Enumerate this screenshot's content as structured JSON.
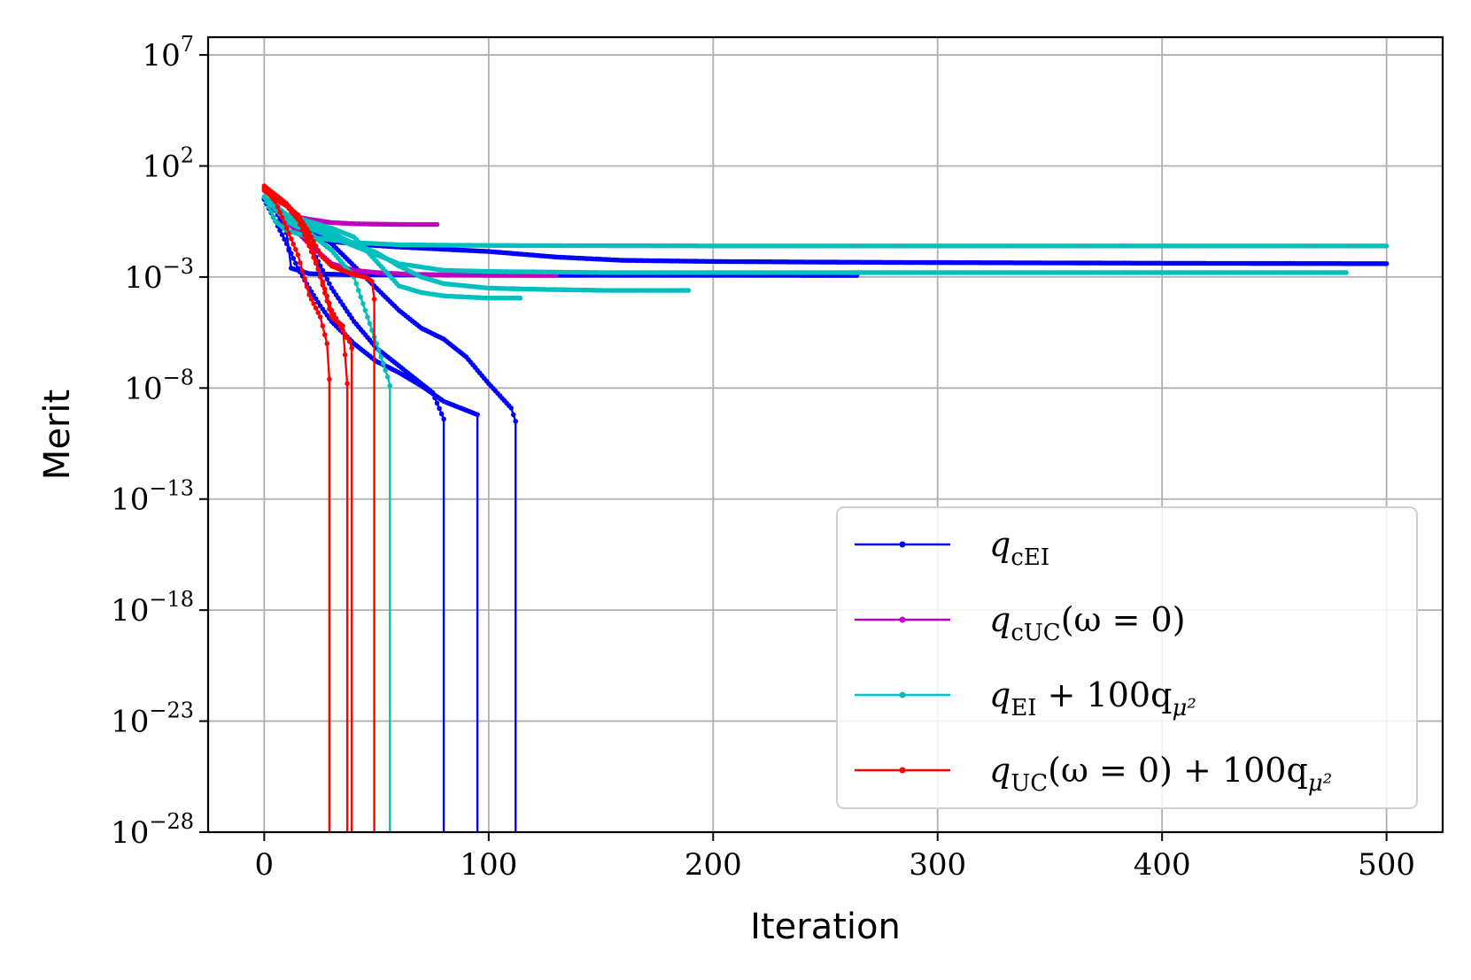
{
  "chart_data": {
    "type": "line",
    "title": "",
    "xlabel": "Iteration",
    "ylabel": "Merit",
    "x_ticks": [
      "0",
      "100",
      "200",
      "300",
      "400",
      "500"
    ],
    "y_ticks": [
      {
        "base": "10",
        "exp": "7"
      },
      {
        "base": "10",
        "exp": "2"
      },
      {
        "base": "10",
        "exp": "−3"
      },
      {
        "base": "10",
        "exp": "−8"
      },
      {
        "base": "10",
        "exp": "−13"
      },
      {
        "base": "10",
        "exp": "−18"
      },
      {
        "base": "10",
        "exp": "−23"
      },
      {
        "base": "10",
        "exp": "−28"
      }
    ],
    "xlim": [
      -25,
      525
    ],
    "ylim_log10": [
      -28,
      7.8
    ],
    "yscale": "log",
    "grid": true,
    "legend_position": "lower-right",
    "series": [
      {
        "name": "q_cEI",
        "color": "#0000ff",
        "legend": {
          "main": "q",
          "sub": "cEI",
          "rest": ""
        },
        "runs": [
          {
            "x": [
              0,
              5,
              10,
              15,
              20,
              30,
              45,
              60,
              80,
              100,
              130,
              160,
              200,
              250,
              300,
              400,
              500
            ],
            "log10y": [
              0.6,
              0.1,
              -0.3,
              -0.8,
              -1.2,
              -1.4,
              -1.55,
              -1.65,
              -1.75,
              -1.85,
              -2.1,
              -2.25,
              -2.3,
              -2.33,
              -2.35,
              -2.38,
              -2.4
            ]
          },
          {
            "x": [
              0,
              5,
              10,
              12,
              20,
              40,
              70,
              100,
              150,
              200,
              264
            ],
            "log10y": [
              0.5,
              0.0,
              -1.0,
              -2.6,
              -2.85,
              -2.9,
              -2.9,
              -2.92,
              -2.92,
              -2.92,
              -2.93
            ]
          },
          {
            "x": [
              0,
              5,
              10,
              15,
              20,
              25,
              30,
              40,
              50,
              60,
              70,
              80,
              90,
              95,
              95,
              95
            ],
            "log10y": [
              0.5,
              -0.5,
              -1.5,
              -2.6,
              -3.5,
              -4.3,
              -5.0,
              -6.0,
              -6.8,
              -7.3,
              -7.9,
              -8.6,
              -9.0,
              -9.2,
              -9.2,
              -28
            ]
          },
          {
            "x": [
              0,
              10,
              20,
              30,
              40,
              50,
              60,
              70,
              75,
              80,
              80
            ],
            "log10y": [
              0.5,
              -0.5,
              -1.5,
              -3.5,
              -5.0,
              -6.2,
              -7.0,
              -7.8,
              -8.2,
              -9.4,
              -28
            ]
          },
          {
            "x": [
              0,
              10,
              20,
              30,
              40,
              50,
              60,
              70,
              80,
              90,
              100,
              110,
              112,
              112
            ],
            "log10y": [
              0.5,
              -0.3,
              -0.8,
              -1.5,
              -2.5,
              -3.5,
              -4.5,
              -5.3,
              -5.8,
              -6.6,
              -7.8,
              -8.9,
              -9.5,
              -28
            ]
          }
        ]
      },
      {
        "name": "q_cUC(ω = 0)",
        "color": "#bf00bf",
        "legend": {
          "main": "q",
          "sub": "cUC",
          "rest": "(ω = 0)"
        },
        "runs": [
          {
            "x": [
              0,
              10,
              20,
              30,
              40,
              50,
              60,
              70,
              77
            ],
            "log10y": [
              0.6,
              -0.2,
              -0.4,
              -0.55,
              -0.6,
              -0.62,
              -0.63,
              -0.63,
              -0.63
            ]
          },
          {
            "x": [
              0,
              10,
              20,
              30,
              40,
              50,
              65,
              80,
              100,
              130
            ],
            "log10y": [
              0.6,
              -0.5,
              -1.5,
              -2.4,
              -2.7,
              -2.8,
              -2.88,
              -2.9,
              -2.92,
              -2.93
            ]
          }
        ]
      },
      {
        "name": "q_EI + 100q_μ²",
        "color": "#00bfbf",
        "legend": {
          "main": "q",
          "sub": "EI",
          "rest": " + 100q",
          "sub2": "μ²"
        },
        "runs": [
          {
            "x": [
              0,
              5,
              10,
              20,
              40,
              60,
              100,
              200,
              300,
              400,
              500
            ],
            "log10y": [
              0.6,
              -0.5,
              -0.9,
              -1.2,
              -1.45,
              -1.55,
              -1.58,
              -1.6,
              -1.6,
              -1.6,
              -1.6
            ]
          },
          {
            "x": [
              0,
              10,
              20,
              30,
              40,
              50,
              60,
              80,
              100,
              150,
              200,
              300,
              400,
              482
            ],
            "log10y": [
              0.6,
              -0.4,
              -0.8,
              -1.2,
              -1.6,
              -2.0,
              -2.4,
              -2.7,
              -2.75,
              -2.8,
              -2.8,
              -2.8,
              -2.8,
              -2.8
            ]
          },
          {
            "x": [
              0,
              10,
              20,
              30,
              40,
              50,
              60,
              70,
              80,
              90,
              100,
              120,
              150,
              189
            ],
            "log10y": [
              0.6,
              -0.2,
              -0.6,
              -1.0,
              -1.5,
              -1.9,
              -2.5,
              -3.0,
              -3.3,
              -3.4,
              -3.5,
              -3.55,
              -3.6,
              -3.6
            ]
          },
          {
            "x": [
              0,
              10,
              20,
              30,
              40,
              50,
              60,
              70,
              80,
              90,
              100,
              114
            ],
            "log10y": [
              0.6,
              -0.2,
              -0.5,
              -0.8,
              -1.2,
              -2.3,
              -3.4,
              -3.7,
              -3.85,
              -3.9,
              -3.95,
              -3.95
            ]
          },
          {
            "x": [
              0,
              10,
              20,
              30,
              40,
              45,
              50,
              55,
              56,
              56
            ],
            "log10y": [
              0.6,
              -0.5,
              -1.0,
              -1.8,
              -3.0,
              -4.5,
              -6.0,
              -7.5,
              -7.9,
              -28
            ]
          }
        ]
      },
      {
        "name": "q_UC(ω = 0) + 100q_μ²",
        "color": "#ff0000",
        "legend": {
          "main": "q",
          "sub": "UC",
          "rest": "(ω = 0) + 100q",
          "sub2": "μ²"
        },
        "runs": [
          {
            "x": [
              0,
              5,
              10,
              15,
              20,
              25,
              28,
              29,
              29
            ],
            "log10y": [
              1.0,
              0.4,
              -0.8,
              -2.0,
              -3.8,
              -4.8,
              -6.0,
              -7.6,
              -28
            ]
          },
          {
            "x": [
              0,
              5,
              10,
              15,
              20,
              25,
              30,
              35,
              37,
              37
            ],
            "log10y": [
              1.1,
              0.7,
              0.3,
              -0.3,
              -1.2,
              -3.0,
              -4.8,
              -5.2,
              -7.8,
              -28
            ]
          },
          {
            "x": [
              0,
              5,
              10,
              15,
              20,
              25,
              30,
              35,
              38,
              39,
              39
            ],
            "log10y": [
              0.9,
              0.5,
              0.2,
              -0.4,
              -1.6,
              -2.9,
              -4.5,
              -5.4,
              -5.9,
              -6.2,
              -28
            ]
          },
          {
            "x": [
              0,
              5,
              10,
              15,
              20,
              25,
              30,
              40,
              45,
              48,
              49,
              49
            ],
            "log10y": [
              1.0,
              0.6,
              0.2,
              -0.2,
              -1.0,
              -2.0,
              -2.5,
              -2.9,
              -3.0,
              -3.2,
              -4.0,
              -28
            ]
          }
        ]
      }
    ]
  }
}
